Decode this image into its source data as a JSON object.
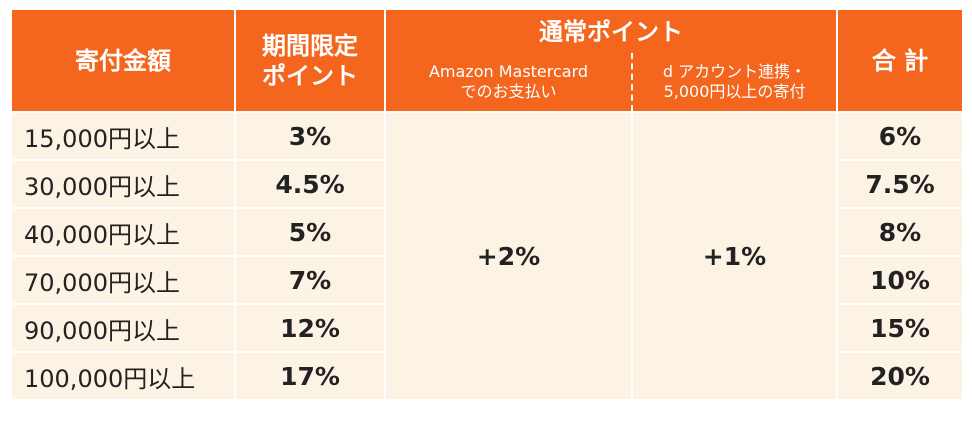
{
  "header": {
    "amount": "寄付金額",
    "limited": [
      "期間限定",
      "ポイント"
    ],
    "regular": "通常ポイント",
    "amazon": [
      "Amazon Mastercard",
      "でのお支払い"
    ],
    "daccount": [
      "d アカウント連携・",
      "5,000円以上の寄付"
    ],
    "total": "合 計"
  },
  "rows": [
    [
      "15,000円以上",
      "3%",
      "6%"
    ],
    [
      "30,000円以上",
      "4.5%",
      "7.5%"
    ],
    [
      "40,000円以上",
      "5%",
      "8%"
    ],
    [
      "70,000円以上",
      "7%",
      "10%"
    ],
    [
      "90,000円以上",
      "12%",
      "15%"
    ],
    [
      "100,000円以上",
      "17%",
      "20%"
    ]
  ],
  "amazon_bonus": "+2%",
  "daccount_bonus": "+1%"
}
